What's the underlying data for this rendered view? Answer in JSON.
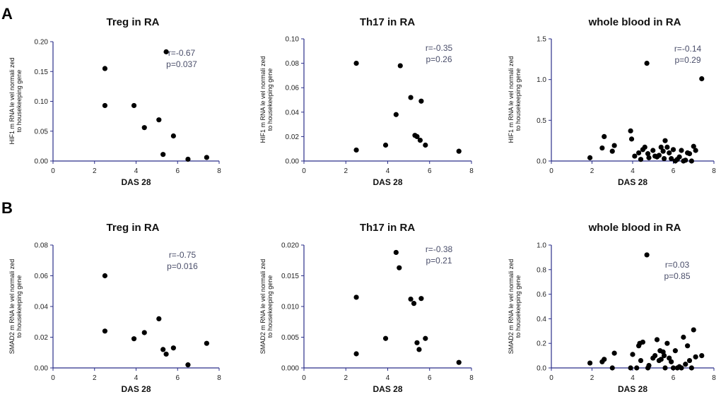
{
  "panels": [
    {
      "label": "A"
    },
    {
      "label": "B"
    }
  ],
  "chart_data": [
    {
      "type": "scatter",
      "title": "Treg in RA",
      "xlabel": "DAS 28",
      "ylabel_lines": [
        "HIF1 m RNA le vel normali zed",
        "to housekeeping gene"
      ],
      "xlim": [
        0,
        8
      ],
      "ylim": [
        0,
        0.2
      ],
      "xticks": [
        "0",
        "2",
        "4",
        "6",
        "8"
      ],
      "yticks": [
        "0.00",
        "0.05",
        "0.10",
        "0.15",
        "0.20"
      ],
      "stat_r": "r=-0.67",
      "stat_p": "p=0.037",
      "x": [
        2.5,
        2.5,
        3.9,
        4.4,
        5.1,
        5.3,
        5.45,
        5.8,
        6.5,
        7.4
      ],
      "y": [
        0.155,
        0.093,
        0.093,
        0.056,
        0.069,
        0.011,
        0.183,
        0.042,
        0.003,
        0.006
      ]
    },
    {
      "type": "scatter",
      "title": "Th17 in RA",
      "xlabel": "DAS 28",
      "ylabel_lines": [
        "HIF1 m RNA le vel normali zed",
        "to housekeeping gene"
      ],
      "xlim": [
        0,
        8
      ],
      "ylim": [
        0,
        0.1
      ],
      "xticks": [
        "0",
        "2",
        "4",
        "6",
        "8"
      ],
      "yticks": [
        "0.00",
        "0.02",
        "0.04",
        "0.06",
        "0.08",
        "0.10"
      ],
      "stat_r": "r=-0.35",
      "stat_p": "p=0.26",
      "x": [
        2.5,
        2.5,
        3.9,
        4.4,
        4.6,
        5.1,
        5.3,
        5.4,
        5.55,
        5.6,
        5.8,
        7.4
      ],
      "y": [
        0.08,
        0.009,
        0.013,
        0.038,
        0.078,
        0.052,
        0.021,
        0.02,
        0.017,
        0.049,
        0.013,
        0.008
      ]
    },
    {
      "type": "scatter",
      "title": "whole blood in RA",
      "xlabel": "DAS 28",
      "ylabel_lines": [
        "HIF1 m RNA le vel normali zed",
        "to housekeeping gene"
      ],
      "xlim": [
        0,
        8
      ],
      "ylim": [
        0,
        1.5
      ],
      "xticks": [
        "0",
        "2",
        "4",
        "6",
        "8"
      ],
      "yticks": [
        "0.0",
        "0.5",
        "1.0",
        "1.5"
      ],
      "stat_r": "r=-0.14",
      "stat_p": "p=0.29",
      "x": [
        1.9,
        2.5,
        2.6,
        3.0,
        3.1,
        3.9,
        3.95,
        4.1,
        4.3,
        4.4,
        4.5,
        4.6,
        4.7,
        4.75,
        4.8,
        5.0,
        5.1,
        5.2,
        5.3,
        5.4,
        5.5,
        5.55,
        5.6,
        5.7,
        5.8,
        5.9,
        6.0,
        6.1,
        6.2,
        6.3,
        6.4,
        6.5,
        6.6,
        6.7,
        6.8,
        6.9,
        7.0,
        7.1,
        7.4
      ],
      "y": [
        0.04,
        0.16,
        0.3,
        0.12,
        0.19,
        0.37,
        0.27,
        0.06,
        0.1,
        0.02,
        0.14,
        0.17,
        1.2,
        0.09,
        0.04,
        0.13,
        0.06,
        0.05,
        0.07,
        0.17,
        0.12,
        0.03,
        0.25,
        0.17,
        0.1,
        0.03,
        0.14,
        0.0,
        0.02,
        0.05,
        0.13,
        0.0,
        0.01,
        0.1,
        0.09,
        0.0,
        0.18,
        0.13,
        1.01
      ]
    },
    {
      "type": "scatter",
      "title": "Treg in RA",
      "xlabel": "DAS 28",
      "ylabel_lines": [
        "SMAD2 m RNA le vel normali zed",
        "to housekeeping gene"
      ],
      "xlim": [
        0,
        8
      ],
      "ylim": [
        0,
        0.08
      ],
      "xticks": [
        "0",
        "2",
        "4",
        "6",
        "8"
      ],
      "yticks": [
        "0.00",
        "0.02",
        "0.04",
        "0.06",
        "0.08"
      ],
      "stat_r": "r=-0.75",
      "stat_p": "p=0.016",
      "x": [
        2.5,
        2.5,
        3.9,
        4.4,
        5.1,
        5.3,
        5.45,
        5.8,
        6.5,
        7.4
      ],
      "y": [
        0.06,
        0.024,
        0.019,
        0.023,
        0.032,
        0.012,
        0.009,
        0.013,
        0.002,
        0.016
      ]
    },
    {
      "type": "scatter",
      "title": "Th17 in RA",
      "xlabel": "DAS 28",
      "ylabel_lines": [
        "SMAD2 m RNA le vel normali zed",
        "to housekeeping gene"
      ],
      "xlim": [
        0,
        8
      ],
      "ylim": [
        0,
        0.02
      ],
      "xticks": [
        "0",
        "2",
        "4",
        "6",
        "8"
      ],
      "yticks": [
        "0.000",
        "0.005",
        "0.010",
        "0.015",
        "0.020"
      ],
      "stat_r": "r=-0.38",
      "stat_p": "p=0.21",
      "x": [
        2.5,
        2.5,
        3.9,
        4.4,
        4.55,
        5.1,
        5.25,
        5.4,
        5.5,
        5.6,
        5.8,
        7.4
      ],
      "y": [
        0.0115,
        0.0023,
        0.0048,
        0.0188,
        0.0163,
        0.0112,
        0.0105,
        0.0041,
        0.003,
        0.0113,
        0.0048,
        0.0009
      ]
    },
    {
      "type": "scatter",
      "title": "whole blood in RA",
      "xlabel": "DAS 28",
      "ylabel_lines": [
        "SMAD2 m RNA le vel normali zed",
        "to housekeeping gene"
      ],
      "xlim": [
        0,
        8
      ],
      "ylim": [
        0,
        1.0
      ],
      "xticks": [
        "0",
        "2",
        "4",
        "6",
        "8"
      ],
      "yticks": [
        "0.0",
        "0.2",
        "0.4",
        "0.6",
        "0.8",
        "1.0"
      ],
      "stat_r": "r=0.03",
      "stat_p": "p=0.85",
      "x": [
        1.9,
        2.5,
        2.6,
        3.0,
        3.1,
        3.9,
        4.0,
        4.2,
        4.3,
        4.35,
        4.4,
        4.5,
        4.7,
        4.75,
        4.8,
        5.0,
        5.1,
        5.2,
        5.3,
        5.35,
        5.4,
        5.5,
        5.55,
        5.6,
        5.7,
        5.8,
        5.9,
        6.0,
        6.1,
        6.2,
        6.3,
        6.4,
        6.5,
        6.6,
        6.7,
        6.8,
        6.9,
        7.0,
        7.1,
        7.4
      ],
      "y": [
        0.04,
        0.05,
        0.07,
        0.0,
        0.12,
        0.0,
        0.11,
        0.0,
        0.18,
        0.2,
        0.06,
        0.21,
        0.92,
        0.0,
        0.02,
        0.08,
        0.1,
        0.23,
        0.06,
        0.14,
        0.07,
        0.13,
        0.1,
        0.0,
        0.2,
        0.08,
        0.05,
        0.0,
        0.14,
        0.0,
        0.01,
        0.0,
        0.25,
        0.03,
        0.18,
        0.06,
        0.0,
        0.31,
        0.09,
        0.1
      ]
    }
  ]
}
